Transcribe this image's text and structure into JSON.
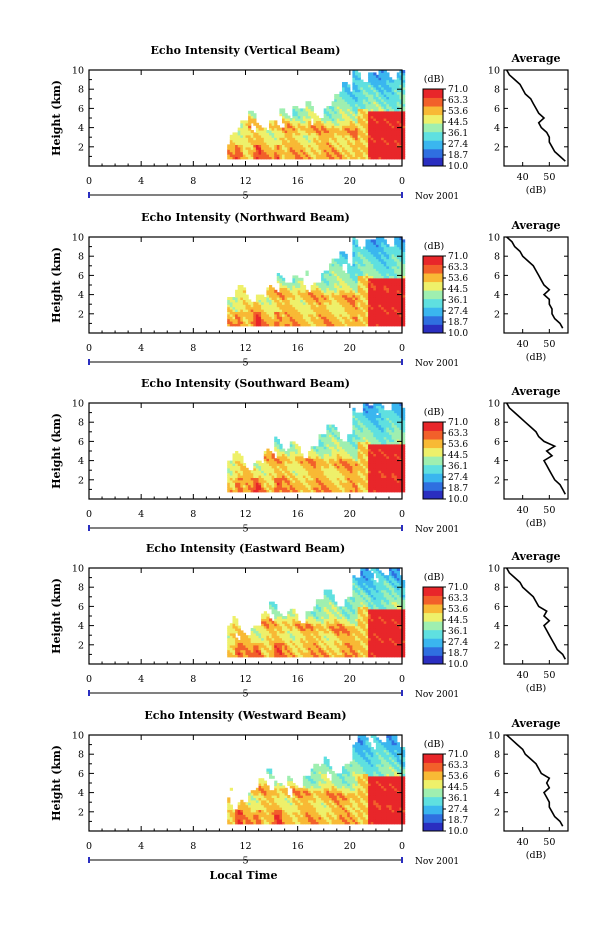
{
  "chart_data": [
    {
      "type": "heatmap",
      "title": "Echo Intensity (Vertical Beam)",
      "ylabel": "Height (km)",
      "xlim": [
        0,
        24
      ],
      "ylim": [
        0,
        10
      ],
      "x_ticks": [
        "0",
        "4",
        "8",
        "12",
        "16",
        "20",
        "0"
      ],
      "y_ticks": [
        "2",
        "4",
        "6",
        "8",
        "10"
      ],
      "day_label": "5",
      "month_label": "Nov 2001",
      "colorbar": {
        "unit": "(dB)",
        "levels": [
          "71.0",
          "63.3",
          "53.6",
          "44.5",
          "36.1",
          "27.4",
          "18.7",
          "10.0"
        ]
      },
      "profile": {
        "title": "Average",
        "xlabel": "(dB)",
        "xlim": [
          33,
          57
        ],
        "x_ticks": [
          "40",
          "50"
        ],
        "y_ticks": [
          "2",
          "4",
          "6",
          "8",
          "10"
        ],
        "h": [
          0.5,
          1,
          1.5,
          2,
          2.5,
          3,
          3.5,
          4,
          4.5,
          5,
          5.5,
          6,
          6.5,
          7,
          7.5,
          8,
          8.5,
          9,
          9.5,
          10
        ],
        "db": [
          56,
          54,
          52,
          51,
          50,
          50,
          49,
          47,
          46,
          48,
          46,
          45,
          44,
          43,
          41,
          40,
          39,
          37,
          35,
          34
        ]
      }
    },
    {
      "type": "heatmap",
      "title": "Echo Intensity (Northward Beam)",
      "ylabel": "Height (km)",
      "xlim": [
        0,
        24
      ],
      "ylim": [
        0,
        10
      ],
      "x_ticks": [
        "0",
        "4",
        "8",
        "12",
        "16",
        "20",
        "0"
      ],
      "y_ticks": [
        "2",
        "4",
        "6",
        "8",
        "10"
      ],
      "day_label": "5",
      "month_label": "Nov 2001",
      "colorbar": {
        "unit": "(dB)",
        "levels": [
          "71.0",
          "63.3",
          "53.6",
          "44.5",
          "36.1",
          "27.4",
          "18.7",
          "10.0"
        ]
      },
      "profile": {
        "title": "Average",
        "xlabel": "(dB)",
        "xlim": [
          33,
          57
        ],
        "x_ticks": [
          "40",
          "50"
        ],
        "y_ticks": [
          "2",
          "4",
          "6",
          "8",
          "10"
        ],
        "h": [
          0.5,
          1,
          1.5,
          2,
          2.5,
          3,
          3.5,
          4,
          4.5,
          5,
          5.5,
          6,
          6.5,
          7,
          7.5,
          8,
          8.5,
          9,
          9.5,
          10
        ],
        "db": [
          55,
          54,
          52,
          51,
          51,
          50,
          50,
          48,
          50,
          48,
          47,
          46,
          45,
          44,
          42,
          40,
          39,
          37,
          36,
          34
        ]
      }
    },
    {
      "type": "heatmap",
      "title": "Echo Intensity (Southward Beam)",
      "ylabel": "Height (km)",
      "xlim": [
        0,
        24
      ],
      "ylim": [
        0,
        10
      ],
      "x_ticks": [
        "0",
        "4",
        "8",
        "12",
        "16",
        "20",
        "0"
      ],
      "y_ticks": [
        "2",
        "4",
        "6",
        "8",
        "10"
      ],
      "day_label": "5",
      "month_label": "Nov 2001",
      "colorbar": {
        "unit": "(dB)",
        "levels": [
          "71.0",
          "63.3",
          "53.6",
          "44.5",
          "36.1",
          "27.4",
          "18.7",
          "10.0"
        ]
      },
      "profile": {
        "title": "Average",
        "xlabel": "(dB)",
        "xlim": [
          33,
          57
        ],
        "x_ticks": [
          "40",
          "50"
        ],
        "y_ticks": [
          "2",
          "4",
          "6",
          "8",
          "10"
        ],
        "h": [
          0.5,
          1,
          1.5,
          2,
          2.5,
          3,
          3.5,
          4,
          4.5,
          5,
          5.5,
          6,
          6.5,
          7,
          7.5,
          8,
          8.5,
          9,
          9.5,
          10
        ],
        "db": [
          56,
          55,
          54,
          52,
          51,
          50,
          49,
          48,
          51,
          49,
          52,
          48,
          46,
          45,
          43,
          41,
          39,
          37,
          35,
          34
        ]
      }
    },
    {
      "type": "heatmap",
      "title": "Echo Intensity (Eastward Beam)",
      "ylabel": "Height (km)",
      "xlim": [
        0,
        24
      ],
      "ylim": [
        0,
        10
      ],
      "x_ticks": [
        "0",
        "4",
        "8",
        "12",
        "16",
        "20",
        "0"
      ],
      "y_ticks": [
        "2",
        "4",
        "6",
        "8",
        "10"
      ],
      "day_label": "5",
      "month_label": "Nov 2001",
      "colorbar": {
        "unit": "(dB)",
        "levels": [
          "71.0",
          "63.3",
          "53.6",
          "44.5",
          "36.1",
          "27.4",
          "18.7",
          "10.0"
        ]
      },
      "profile": {
        "title": "Average",
        "xlabel": "(dB)",
        "xlim": [
          33,
          57
        ],
        "x_ticks": [
          "40",
          "50"
        ],
        "y_ticks": [
          "2",
          "4",
          "6",
          "8",
          "10"
        ],
        "h": [
          0.5,
          1,
          1.5,
          2,
          2.5,
          3,
          3.5,
          4,
          4.5,
          5,
          5.5,
          6,
          6.5,
          7,
          7.5,
          8,
          8.5,
          9,
          9.5,
          10
        ],
        "db": [
          56,
          55,
          53,
          52,
          51,
          50,
          49,
          48,
          50,
          48,
          49,
          46,
          45,
          44,
          42,
          40,
          39,
          37,
          35,
          34
        ]
      }
    },
    {
      "type": "heatmap",
      "title": "Echo Intensity (Westward Beam)",
      "ylabel": "Height (km)",
      "xlim": [
        0,
        24
      ],
      "ylim": [
        0,
        10
      ],
      "x_ticks": [
        "0",
        "4",
        "8",
        "12",
        "16",
        "20",
        "0"
      ],
      "y_ticks": [
        "2",
        "4",
        "6",
        "8",
        "10"
      ],
      "day_label": "5",
      "month_label": "Nov 2001",
      "xlabel": "Local Time",
      "colorbar": {
        "unit": "(dB)",
        "levels": [
          "71.0",
          "63.3",
          "53.6",
          "44.5",
          "36.1",
          "27.4",
          "18.7",
          "10.0"
        ]
      },
      "profile": {
        "title": "Average",
        "xlabel": "(dB)",
        "xlim": [
          33,
          57
        ],
        "x_ticks": [
          "40",
          "50"
        ],
        "y_ticks": [
          "2",
          "4",
          "6",
          "8",
          "10"
        ],
        "h": [
          0.5,
          1,
          1.5,
          2,
          2.5,
          3,
          3.5,
          4,
          4.5,
          5,
          5.5,
          6,
          6.5,
          7,
          7.5,
          8,
          8.5,
          9,
          9.5,
          10
        ],
        "db": [
          55,
          54,
          52,
          51,
          50,
          50,
          49,
          48,
          50,
          49,
          50,
          47,
          46,
          45,
          43,
          41,
          40,
          38,
          36,
          34
        ]
      }
    }
  ]
}
